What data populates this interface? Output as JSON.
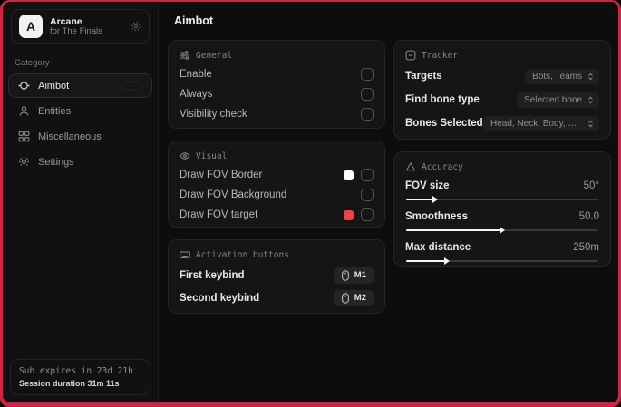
{
  "window": {
    "accent": "#d22246"
  },
  "app": {
    "name": "Arcane",
    "subtitle": "for The Finals",
    "logo_letter": "A"
  },
  "sidebar": {
    "category_label": "Category",
    "items": [
      {
        "label": "Aimbot",
        "active": true
      },
      {
        "label": "Entities",
        "active": false
      },
      {
        "label": "Miscellaneous",
        "active": false
      },
      {
        "label": "Settings",
        "active": false
      }
    ],
    "footer": {
      "expiry": "Sub expires in 23d 21h",
      "session": "Session duration 31m 11s"
    }
  },
  "page": {
    "title": "Aimbot"
  },
  "general": {
    "title": "General",
    "rows": [
      {
        "label": "Enable",
        "checked": false
      },
      {
        "label": "Always",
        "checked": false
      },
      {
        "label": "Visibility check",
        "checked": false
      }
    ]
  },
  "visual": {
    "title": "Visual",
    "rows": [
      {
        "label": "Draw FOV Border",
        "swatch": "#ffffff",
        "checked": false
      },
      {
        "label": "Draw FOV Background",
        "checked": false
      },
      {
        "label": "Draw FOV target",
        "swatch": "#ef4444",
        "checked": false
      }
    ]
  },
  "activation": {
    "title": "Activation buttons",
    "rows": [
      {
        "label": "First keybind",
        "key": "M1"
      },
      {
        "label": "Second keybind",
        "key": "M2"
      }
    ]
  },
  "tracker": {
    "title": "Tracker",
    "rows": [
      {
        "label": "Targets",
        "value": "Bots, Teams"
      },
      {
        "label": "Find bone type",
        "value": "Selected bone"
      },
      {
        "label": "Bones Selected",
        "value": "Head, Neck, Body, Pe..."
      }
    ]
  },
  "accuracy": {
    "title": "Accuracy",
    "rows": [
      {
        "label": "FOV size",
        "value": "50°",
        "fill": 15
      },
      {
        "label": "Smoothness",
        "value": "50.0",
        "fill": 50
      },
      {
        "label": "Max distance",
        "value": "250m",
        "fill": 21
      }
    ]
  }
}
